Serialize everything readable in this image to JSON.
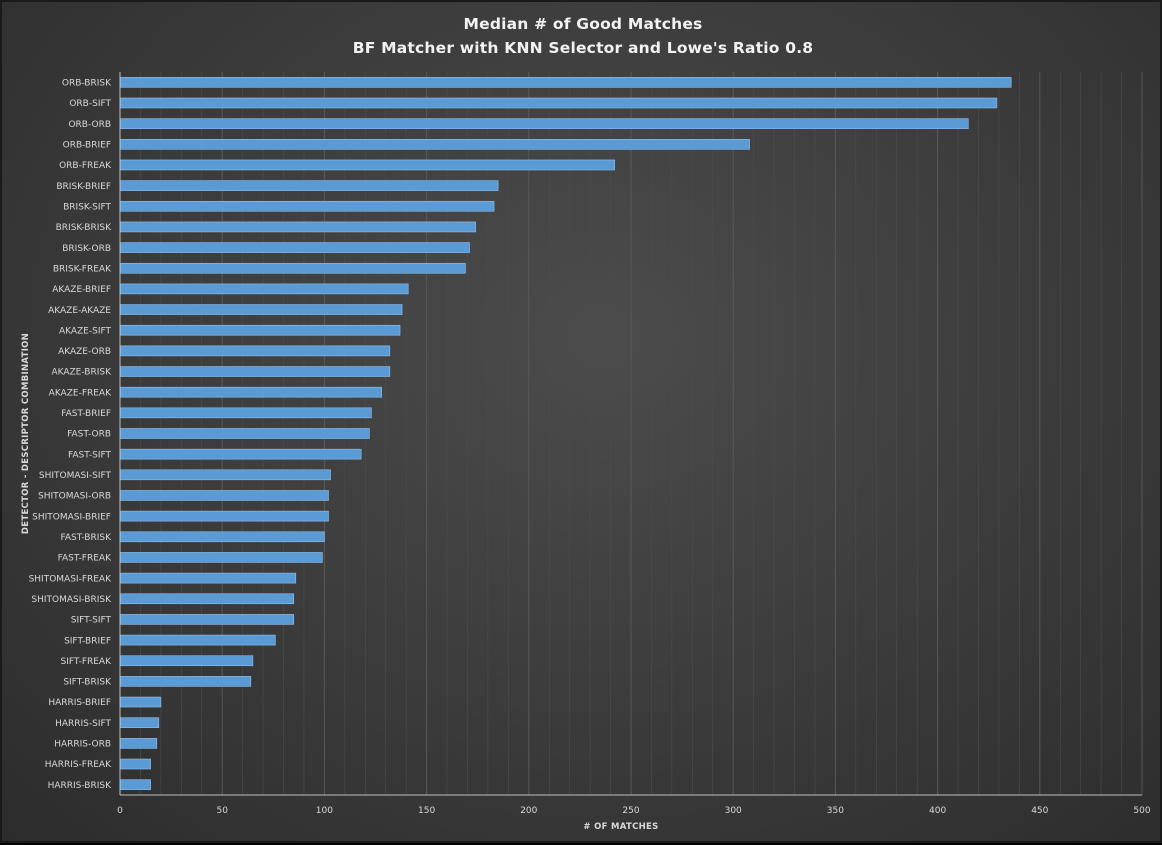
{
  "chart_data": {
    "type": "bar",
    "orientation": "horizontal",
    "title": "Median # of Good Matches",
    "subtitle": "BF Matcher with KNN Selector and Lowe's Ratio 0.8",
    "xlabel": "# OF MATCHES",
    "ylabel": "DETECTOR - DESCRIPTOR COMBINATION",
    "xlim": [
      0,
      500
    ],
    "xticks": [
      "0",
      "50",
      "100",
      "150",
      "200",
      "250",
      "300",
      "350",
      "400",
      "450",
      "500"
    ],
    "grid": "vertical",
    "colors": {
      "bar": "#5b9bd5",
      "bar_edge": "#8fc0ee",
      "grid": "#595959",
      "text": "#d9d9d9"
    },
    "categories": [
      "ORB-BRISK",
      "ORB-SIFT",
      "ORB-ORB",
      "ORB-BRIEF",
      "ORB-FREAK",
      "BRISK-BRIEF",
      "BRISK-SIFT",
      "BRISK-BRISK",
      "BRISK-ORB",
      "BRISK-FREAK",
      "AKAZE-BRIEF",
      "AKAZE-AKAZE",
      "AKAZE-SIFT",
      "AKAZE-ORB",
      "AKAZE-BRISK",
      "AKAZE-FREAK",
      "FAST-BRIEF",
      "FAST-ORB",
      "FAST-SIFT",
      "SHITOMASI-SIFT",
      "SHITOMASI-ORB",
      "SHITOMASI-BRIEF",
      "FAST-BRISK",
      "FAST-FREAK",
      "SHITOMASI-FREAK",
      "SHITOMASI-BRISK",
      "SIFT-SIFT",
      "SIFT-BRIEF",
      "SIFT-FREAK",
      "SIFT-BRISK",
      "HARRIS-BRIEF",
      "HARRIS-SIFT",
      "HARRIS-ORB",
      "HARRIS-FREAK",
      "HARRIS-BRISK"
    ],
    "values": [
      436,
      429,
      415,
      308,
      242,
      185,
      183,
      174,
      171,
      169,
      141,
      138,
      137,
      132,
      132,
      128,
      123,
      122,
      118,
      103,
      102,
      102,
      100,
      99,
      86,
      85,
      85,
      76,
      65,
      64,
      20,
      19,
      18,
      15,
      15
    ]
  }
}
